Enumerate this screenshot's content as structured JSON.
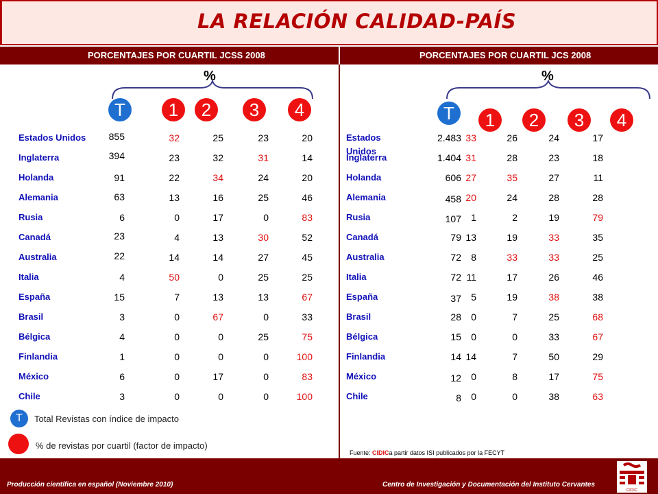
{
  "title": "LA RELACIÓN CALIDAD-PAÍS",
  "left_header": "PORCENTAJES POR CUARTIL JCSS 2008",
  "right_header": "PORCENTAJES POR CUARTIL JCS 2008",
  "percent_symbol": "%",
  "circle_labels": {
    "t": "T",
    "q1": "1",
    "q2": "2",
    "q3": "3",
    "q4": "4"
  },
  "colors": {
    "accent": "#b40000",
    "bar": "#7a0000",
    "highlight": "#e01010",
    "country": "#1010b8",
    "circle_red": "#ee1111",
    "circle_blue": "#1e6fd0"
  },
  "left_table": [
    {
      "country": "Estados Unidos",
      "total": "855",
      "q": [
        "32",
        "25",
        "23",
        "20"
      ],
      "hi": 0
    },
    {
      "country": "Inglaterra",
      "total": "394",
      "q": [
        "23",
        "32",
        "31",
        "14"
      ],
      "hi": 2
    },
    {
      "country": "Holanda",
      "total": "91",
      "q": [
        "22",
        "34",
        "24",
        "20"
      ],
      "hi": 1
    },
    {
      "country": "Alemania",
      "total": "63",
      "q": [
        "13",
        "16",
        "25",
        "46"
      ],
      "hi": -1
    },
    {
      "country": "Rusia",
      "total": "6",
      "q": [
        "0",
        "17",
        "0",
        "83"
      ],
      "hi": 3
    },
    {
      "country": "Canadá",
      "total": "23",
      "q": [
        "4",
        "13",
        "30",
        "52"
      ],
      "hi": 2
    },
    {
      "country": "Australia",
      "total": "22",
      "q": [
        "14",
        "14",
        "27",
        "45"
      ],
      "hi": -1
    },
    {
      "country": "Italia",
      "total": "4",
      "q": [
        "50",
        "0",
        "25",
        "25"
      ],
      "hi": 0
    },
    {
      "country": "España",
      "total": "15",
      "q": [
        "7",
        "13",
        "13",
        "67"
      ],
      "hi": 3
    },
    {
      "country": "Brasil",
      "total": "3",
      "q": [
        "0",
        "67",
        "0",
        "33"
      ],
      "hi": 1
    },
    {
      "country": "Bélgica",
      "total": "4",
      "q": [
        "0",
        "0",
        "25",
        "75"
      ],
      "hi": 3
    },
    {
      "country": "Finlandia",
      "total": "1",
      "q": [
        "0",
        "0",
        "0",
        "100"
      ],
      "hi": 3
    },
    {
      "country": "México",
      "total": "6",
      "q": [
        "0",
        "17",
        "0",
        "83"
      ],
      "hi": 3
    },
    {
      "country": "Chile",
      "total": "3",
      "q": [
        "0",
        "0",
        "0",
        "100"
      ],
      "hi": 3
    }
  ],
  "right_table": [
    {
      "country": "Estados Unidos",
      "total": "2.483",
      "q": [
        "33",
        "26",
        "24",
        "17"
      ],
      "hi": 0
    },
    {
      "country": "Inglaterra",
      "total": "1.404",
      "q": [
        "31",
        "28",
        "23",
        "18"
      ],
      "hi": 0
    },
    {
      "country": "Holanda",
      "total": "606",
      "q": [
        "27",
        "35",
        "27",
        "11"
      ],
      "hi": 5
    },
    {
      "country": "Alemania",
      "total": "458",
      "q": [
        "20",
        "24",
        "28",
        "28"
      ],
      "hi": 0
    },
    {
      "country": "Rusia",
      "total": "107",
      "q": [
        "1",
        "2",
        "19",
        "79"
      ],
      "hi": 3
    },
    {
      "country": "Canadá",
      "total": "79",
      "q": [
        "13",
        "19",
        "33",
        "35"
      ],
      "hi": 2
    },
    {
      "country": "Australia",
      "total": "72",
      "q": [
        "8",
        "33",
        "33",
        "25"
      ],
      "hi": 6
    },
    {
      "country": "Italia",
      "total": "72",
      "q": [
        "11",
        "17",
        "26",
        "46"
      ],
      "hi": -1
    },
    {
      "country": "España",
      "total": "37",
      "q": [
        "5",
        "19",
        "38",
        "38"
      ],
      "hi": 2
    },
    {
      "country": "Brasil",
      "total": "28",
      "q": [
        "0",
        "7",
        "25",
        "68"
      ],
      "hi": 3
    },
    {
      "country": "Bélgica",
      "total": "15",
      "q": [
        "0",
        "0",
        "33",
        "67"
      ],
      "hi": 3
    },
    {
      "country": "Finlandia",
      "total": "14",
      "q": [
        "14",
        "7",
        "50",
        "29"
      ],
      "hi": -1
    },
    {
      "country": "México",
      "total": "12",
      "q": [
        "0",
        "8",
        "17",
        "75"
      ],
      "hi": 3
    },
    {
      "country": "Chile",
      "total": "8",
      "q": [
        "0",
        "0",
        "38",
        "63"
      ],
      "hi": 3
    }
  ],
  "legend": {
    "t_label": "T",
    "total_text": "Total Revistas con índice de impacto",
    "quartile_text": "% de revistas por cuartil (factor de impacto)"
  },
  "source": {
    "prefix": "Fuente: ",
    "cidic": "CIDIC",
    "rest": "a partir datos ISI publicados por la FECYT"
  },
  "footer": {
    "left": "Producción científica en español (Noviembre 2010)",
    "right": "Centro de Investigación y Documentación del Instituto Cervantes",
    "logo_text": "CIDIC"
  }
}
